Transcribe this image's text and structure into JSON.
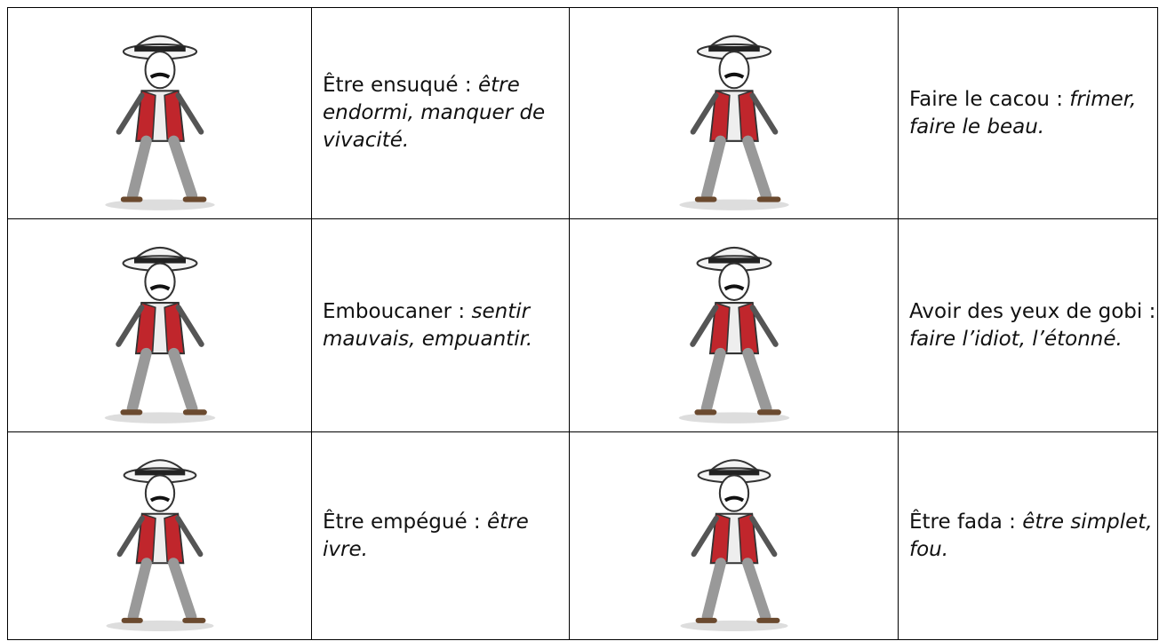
{
  "table": {
    "rows": [
      [
        {
          "term": "Être ensuqué :",
          "definition": "être endormi, manquer de vivacité."
        },
        {
          "term": "Faire le cacou :",
          "definition": "frimer, faire le beau."
        }
      ],
      [
        {
          "term": "Emboucaner :",
          "definition": "sentir mauvais, empuantir."
        },
        {
          "term": "Avoir des yeux de gobi :",
          "definition": "faire l’idiot, l’étonné."
        }
      ],
      [
        {
          "term": "Être empégué :",
          "definition": "être ivre."
        },
        {
          "term": "Être fada :",
          "definition": "être simplet, fou."
        }
      ]
    ]
  }
}
